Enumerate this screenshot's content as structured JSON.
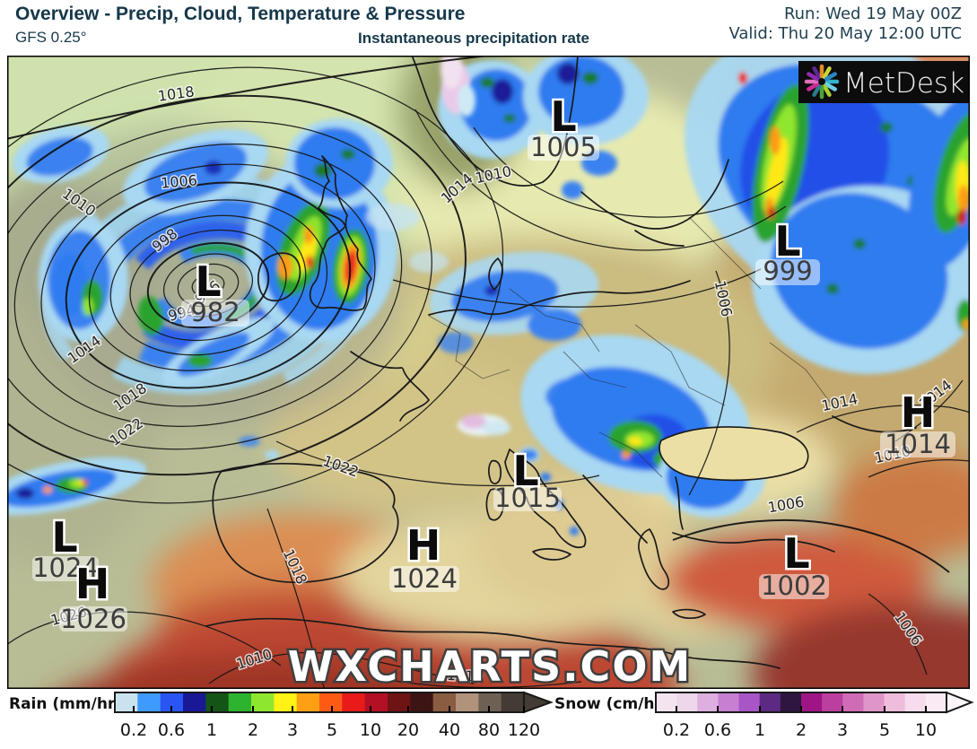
{
  "header": {
    "title": "Overview - Precip, Cloud, Temperature & Pressure",
    "model": "GFS 0.25°",
    "subtitle": "Instantaneous precipitation rate",
    "run_label": "Run: Wed 19 May 00Z",
    "valid_label": "Valid: Thu 20 May 12:00 UTC",
    "text_color": "#16384a"
  },
  "logo": {
    "text": "MetDesk",
    "background": "#0c0c0c",
    "ray_colors": [
      "#34b4cc",
      "#6fd0e4",
      "#a9cc30",
      "#4ba23a",
      "#2a7a8c",
      "#cc2a96",
      "#e070bc",
      "#8f2ab0",
      "#5a2a96",
      "#e08a2a",
      "#ccd435",
      "#2a86c4"
    ]
  },
  "map": {
    "watermark": "WXCHARTS.COM",
    "pressure_systems": [
      {
        "letter": "L",
        "value": "982"
      },
      {
        "letter": "L",
        "value": "1005"
      },
      {
        "letter": "L",
        "value": "999"
      },
      {
        "letter": "H",
        "value": "1014"
      },
      {
        "letter": "L",
        "value": "1015"
      },
      {
        "letter": "H",
        "value": "1024"
      },
      {
        "letter": "L",
        "value": "1024"
      },
      {
        "letter": "H",
        "value": "1026"
      },
      {
        "letter": "L",
        "value": "1002"
      }
    ],
    "isobar_labels": [
      "1018",
      "1006",
      "1010",
      "998",
      "994",
      "986",
      "1014",
      "1018",
      "1022",
      "1026",
      "1014",
      "1010",
      "1006",
      "1014",
      "1014",
      "1010",
      "1006",
      "1006",
      "1022",
      "1018",
      "1010",
      "1010"
    ]
  },
  "legend": {
    "rain": {
      "label": "Rain (mm/hr)",
      "ticks": [
        "0.2",
        "0.6",
        "1",
        "2",
        "3",
        "5",
        "10",
        "20",
        "40",
        "80",
        "120"
      ],
      "colors": [
        "#c9e3ee",
        "#3f9aff",
        "#2a55f2",
        "#191996",
        "#155417",
        "#2eb32e",
        "#8ee62e",
        "#fff214",
        "#ffa014",
        "#ff5a14",
        "#e81a1a",
        "#b31025",
        "#6e1414",
        "#3d1414",
        "#8a5c42",
        "#b0937a",
        "#6e6153",
        "#443c34"
      ],
      "arrow_color": "#443c34"
    },
    "snow": {
      "label": "Snow (cm/hr)",
      "ticks": [
        "0.2",
        "0.6",
        "1",
        "2",
        "3",
        "5",
        "10"
      ],
      "colors": [
        "#f4e4f0",
        "#eed7ea",
        "#ddaede",
        "#c77fd2",
        "#a855c6",
        "#5c2a80",
        "#2e1640",
        "#a01585",
        "#bb3f9e",
        "#cf6cb5",
        "#e095c8",
        "#eebcdc",
        "#f6dcec",
        "#faeaf4"
      ],
      "arrow_color": "#fbf5fa"
    }
  }
}
